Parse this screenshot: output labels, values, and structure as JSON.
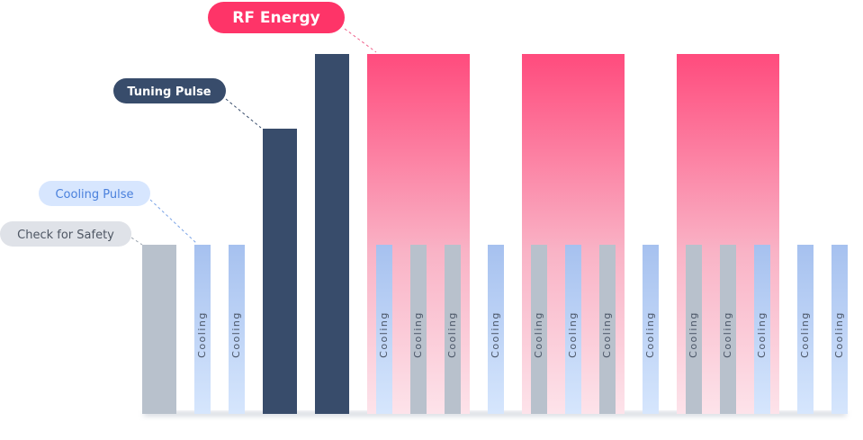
{
  "callouts": {
    "rf_energy": "RF Energy",
    "tuning_pulse": "Tuning Pulse",
    "cooling_pulse": "Cooling Pulse",
    "check_for_safety": "Check for Safety"
  },
  "bar_labels": [
    "Cooling",
    "Cooling",
    "Cooling",
    "Cooling",
    "Cooling",
    "Cooling",
    "Cooling",
    "Cooling",
    "Cooling",
    "Cooling",
    "Cooling",
    "Cooling",
    "Cooling",
    "Cooling",
    "Cooling"
  ]
}
